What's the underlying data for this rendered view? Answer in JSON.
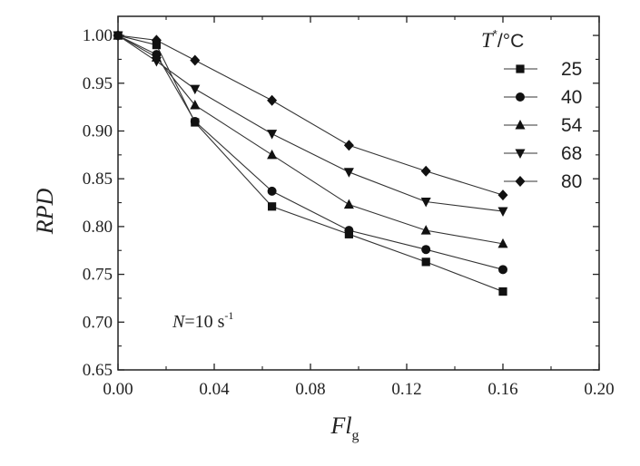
{
  "chart_data": {
    "type": "line",
    "xlabel": "Fl",
    "xlabel_sub": "g",
    "ylabel": "RPD",
    "xlim": [
      0.0,
      0.2
    ],
    "ylim": [
      0.65,
      1.02
    ],
    "x_ticks": [
      "0.00",
      "0.04",
      "0.08",
      "0.12",
      "0.16",
      "0.20"
    ],
    "y_ticks": [
      "0.65",
      "0.70",
      "0.75",
      "0.80",
      "0.85",
      "0.90",
      "0.95",
      "1.00"
    ],
    "x_tick_values": [
      0.0,
      0.04,
      0.08,
      0.12,
      0.16,
      0.2
    ],
    "y_tick_values": [
      0.65,
      0.7,
      0.75,
      0.8,
      0.85,
      0.9,
      0.95,
      1.0
    ],
    "legend_title_main": "T",
    "legend_title_sup": "*",
    "legend_title_unit": "/°C",
    "legend_placement": "top-right",
    "annotation": {
      "italic": "N",
      "text": "=10 s",
      "sup": "-1"
    },
    "x": [
      0.0,
      0.016,
      0.032,
      0.064,
      0.096,
      0.128,
      0.16
    ],
    "series": [
      {
        "name": "25",
        "marker": "square",
        "values": [
          1.0,
          0.99,
          0.909,
          0.821,
          0.792,
          0.763,
          0.732
        ]
      },
      {
        "name": "40",
        "marker": "circle",
        "values": [
          1.0,
          0.98,
          0.91,
          0.837,
          0.796,
          0.776,
          0.755
        ]
      },
      {
        "name": "54",
        "marker": "triangle-up",
        "values": [
          1.0,
          0.977,
          0.927,
          0.875,
          0.823,
          0.796,
          0.782
        ]
      },
      {
        "name": "68",
        "marker": "triangle-down",
        "values": [
          1.0,
          0.973,
          0.944,
          0.897,
          0.857,
          0.826,
          0.816
        ]
      },
      {
        "name": "80",
        "marker": "diamond",
        "values": [
          1.0,
          0.995,
          0.974,
          0.932,
          0.885,
          0.858,
          0.833
        ]
      }
    ],
    "grid": false
  }
}
